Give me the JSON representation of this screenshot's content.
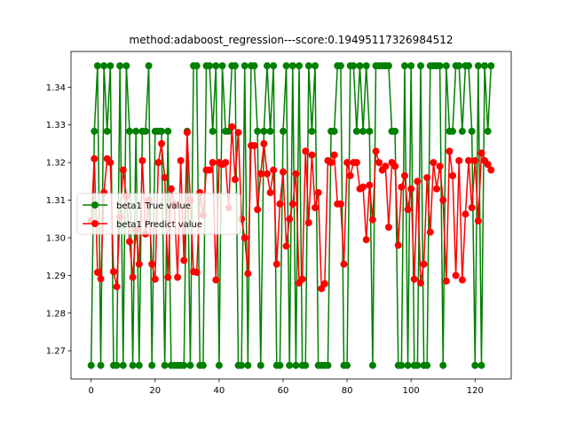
{
  "chart_data": {
    "type": "line",
    "title": "method:adaboost_regression---score:0.19495117326984512",
    "xlabel": "",
    "ylabel": "",
    "xlim": [
      -6.3,
      131.3
    ],
    "ylim": [
      1.2625,
      1.3495
    ],
    "xticks": [
      0,
      20,
      40,
      60,
      80,
      100,
      120
    ],
    "yticks": [
      1.27,
      1.28,
      1.29,
      1.3,
      1.31,
      1.32,
      1.33,
      1.34
    ],
    "grid": false,
    "legend_position": "center-left",
    "series": [
      {
        "name": "beta1 True value",
        "color": "#008000",
        "marker": "circle",
        "x": [
          0,
          1,
          2,
          3,
          4,
          5,
          6,
          7,
          8,
          9,
          10,
          11,
          12,
          13,
          14,
          15,
          16,
          17,
          18,
          19,
          20,
          21,
          22,
          23,
          24,
          25,
          26,
          27,
          28,
          29,
          30,
          31,
          32,
          33,
          34,
          35,
          36,
          37,
          38,
          39,
          40,
          41,
          42,
          43,
          44,
          45,
          46,
          47,
          48,
          49,
          50,
          51,
          52,
          53,
          54,
          55,
          56,
          57,
          58,
          59,
          60,
          61,
          62,
          63,
          64,
          65,
          66,
          67,
          68,
          69,
          70,
          71,
          72,
          73,
          74,
          75,
          76,
          77,
          78,
          79,
          80,
          81,
          82,
          83,
          84,
          85,
          86,
          87,
          88,
          89,
          90,
          91,
          92,
          93,
          94,
          95,
          96,
          97,
          98,
          99,
          100,
          101,
          102,
          103,
          104,
          105,
          106,
          107,
          108,
          109,
          110,
          111,
          112,
          113,
          114,
          115,
          116,
          117,
          118,
          119,
          120,
          121,
          122,
          123,
          124,
          125
        ],
        "values": [
          1.2661,
          1.3283,
          1.3457,
          1.2661,
          1.3457,
          1.3283,
          1.3457,
          1.2661,
          1.2661,
          1.3457,
          1.2661,
          1.3457,
          1.3283,
          1.2661,
          1.3283,
          1.2661,
          1.3283,
          1.3283,
          1.3457,
          1.2661,
          1.3283,
          1.3283,
          1.3283,
          1.2661,
          1.3283,
          1.2661,
          1.2661,
          1.2661,
          1.2661,
          1.2661,
          1.3283,
          1.2661,
          1.3457,
          1.3457,
          1.2661,
          1.2661,
          1.3457,
          1.3457,
          1.3283,
          1.3457,
          1.2661,
          1.3457,
          1.3283,
          1.3283,
          1.3457,
          1.3457,
          1.2661,
          1.2661,
          1.3457,
          1.2661,
          1.3457,
          1.3457,
          1.3283,
          1.2661,
          1.3283,
          1.3457,
          1.3283,
          1.3457,
          1.2661,
          1.2661,
          1.3283,
          1.3457,
          1.2661,
          1.3457,
          1.2661,
          1.3457,
          1.2661,
          1.2661,
          1.3457,
          1.3283,
          1.3457,
          1.2661,
          1.2661,
          1.2661,
          1.2661,
          1.3283,
          1.3283,
          1.3457,
          1.3457,
          1.2661,
          1.2661,
          1.3457,
          1.3457,
          1.3283,
          1.3457,
          1.3283,
          1.3457,
          1.3283,
          1.2661,
          1.3457,
          1.3457,
          1.3457,
          1.3457,
          1.3457,
          1.3283,
          1.3283,
          1.2661,
          1.2661,
          1.3457,
          1.2661,
          1.3457,
          1.2661,
          1.2661,
          1.3457,
          1.2661,
          1.2661,
          1.3457,
          1.3457,
          1.3457,
          1.3457,
          1.2661,
          1.3457,
          1.3283,
          1.3283,
          1.3457,
          1.3457,
          1.3283,
          1.3457,
          1.3457,
          1.3283,
          1.2661,
          1.3457,
          1.2661,
          1.3457,
          1.3283,
          1.3457
        ]
      },
      {
        "name": "beta1 Predict value",
        "color": "#ff0000",
        "marker": "circle",
        "x": [
          0,
          1,
          2,
          3,
          4,
          5,
          6,
          7,
          8,
          9,
          10,
          11,
          12,
          13,
          14,
          15,
          16,
          17,
          18,
          19,
          20,
          21,
          22,
          23,
          24,
          25,
          26,
          27,
          28,
          29,
          30,
          31,
          32,
          33,
          34,
          35,
          36,
          37,
          38,
          39,
          40,
          41,
          42,
          43,
          44,
          45,
          46,
          47,
          48,
          49,
          50,
          51,
          52,
          53,
          54,
          55,
          56,
          57,
          58,
          59,
          60,
          61,
          62,
          63,
          64,
          65,
          66,
          67,
          68,
          69,
          70,
          71,
          72,
          73,
          74,
          75,
          76,
          77,
          78,
          79,
          80,
          81,
          82,
          83,
          84,
          85,
          86,
          87,
          88,
          89,
          90,
          91,
          92,
          93,
          94,
          95,
          96,
          97,
          98,
          99,
          100,
          101,
          102,
          103,
          104,
          105,
          106,
          107,
          108,
          109,
          110,
          111,
          112,
          113,
          114,
          115,
          116,
          117,
          118,
          119,
          120,
          121,
          122,
          123,
          124,
          125
        ],
        "values": [
          1.3045,
          1.321,
          1.2908,
          1.2891,
          1.312,
          1.321,
          1.32,
          1.291,
          1.287,
          1.3055,
          1.318,
          1.311,
          1.299,
          1.2895,
          1.302,
          1.293,
          1.3205,
          1.301,
          1.31,
          1.293,
          1.289,
          1.32,
          1.325,
          1.316,
          1.2895,
          1.313,
          1.309,
          1.2895,
          1.3205,
          1.294,
          1.328,
          1.31,
          1.291,
          1.2908,
          1.312,
          1.306,
          1.318,
          1.318,
          1.32,
          1.2888,
          1.32,
          1.3195,
          1.32,
          1.308,
          1.3295,
          1.3155,
          1.328,
          1.305,
          1.3,
          1.2905,
          1.3245,
          1.3245,
          1.3075,
          1.317,
          1.325,
          1.317,
          1.312,
          1.318,
          1.293,
          1.309,
          1.3175,
          1.2978,
          1.305,
          1.309,
          1.317,
          1.288,
          1.289,
          1.323,
          1.304,
          1.322,
          1.308,
          1.312,
          1.2865,
          1.2878,
          1.3205,
          1.32,
          1.322,
          1.309,
          1.309,
          1.293,
          1.32,
          1.3165,
          1.32,
          1.32,
          1.313,
          1.3135,
          1.2995,
          1.314,
          1.3048,
          1.323,
          1.32,
          1.318,
          1.319,
          1.3028,
          1.32,
          1.319,
          1.298,
          1.3135,
          1.3165,
          1.3075,
          1.313,
          1.289,
          1.315,
          1.288,
          1.293,
          1.316,
          1.3015,
          1.32,
          1.313,
          1.319,
          1.31,
          1.2885,
          1.323,
          1.3165,
          1.29,
          1.3205,
          1.2888,
          1.3063,
          1.3205,
          1.308,
          1.3205,
          1.3045,
          1.3225,
          1.3205,
          1.3195,
          1.318
        ]
      }
    ]
  }
}
